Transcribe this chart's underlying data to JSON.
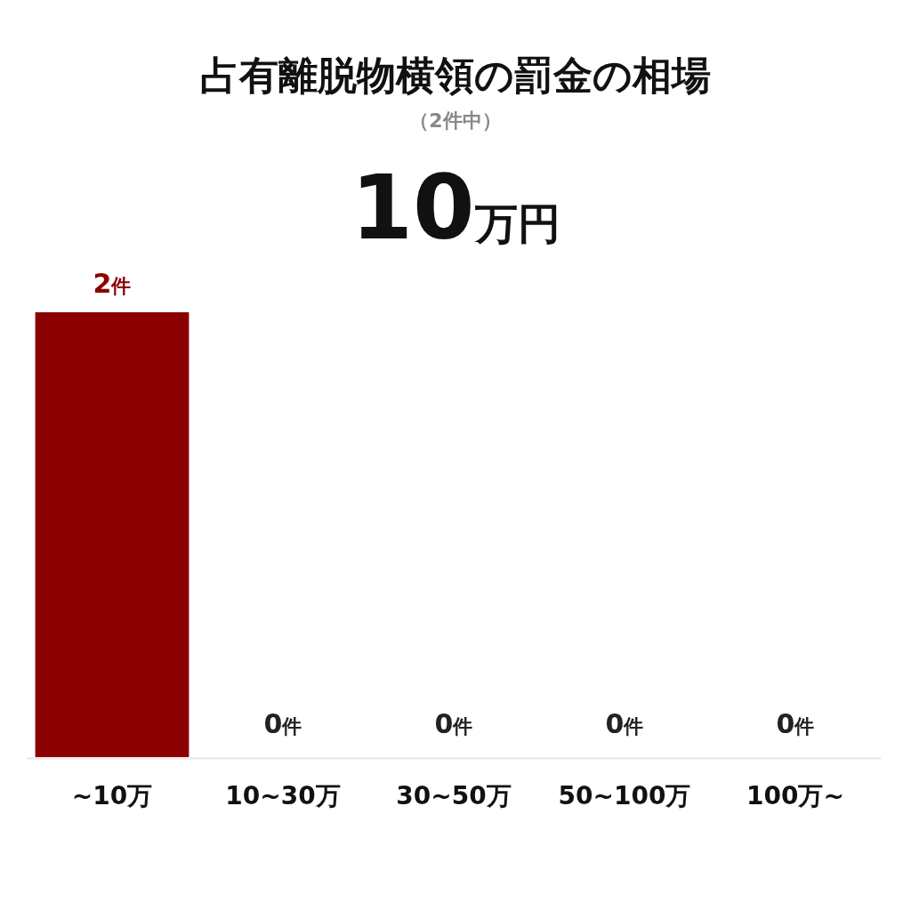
{
  "chart_data": {
    "type": "bar",
    "title": "占有離脱物横領の罰金の相場",
    "subtitle": "（2件中）",
    "annotations": [
      "10万円"
    ],
    "categories": [
      "~10万",
      "10~30万",
      "30~50万",
      "50~100万",
      "100万~"
    ],
    "values": [
      2,
      0,
      0,
      0,
      0
    ],
    "colors": [
      "#8b0000",
      "#b3b3b3",
      "#b3b3b3",
      "#b3b3b3",
      "#b3b3b3"
    ],
    "value_labels": [
      "2件",
      "0件",
      "0件",
      "0件",
      "0件"
    ]
  }
}
